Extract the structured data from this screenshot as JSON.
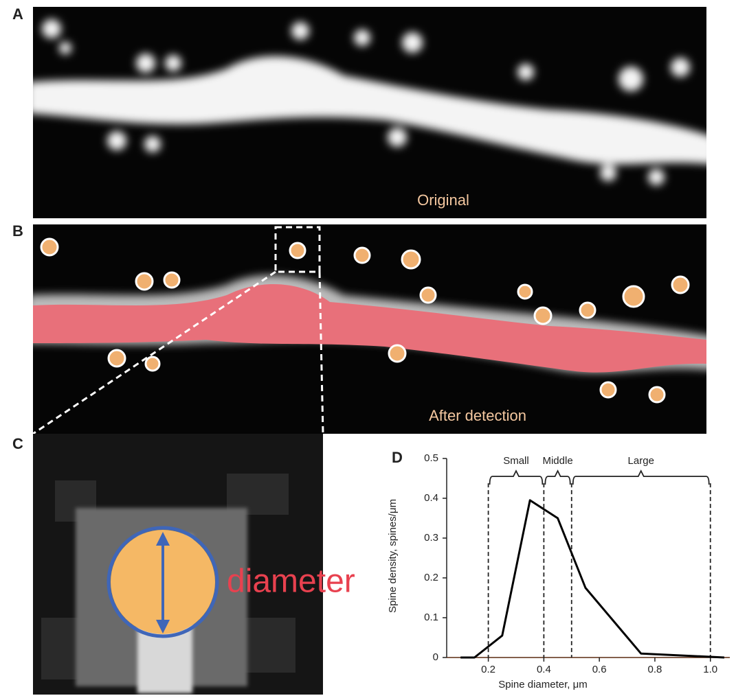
{
  "panels": {
    "a": {
      "label": "A",
      "caption": "Original"
    },
    "b": {
      "label": "B",
      "caption": "After detection"
    },
    "c": {
      "label": "C",
      "annotation": "diameter"
    }
  },
  "chart_data": {
    "type": "line",
    "panel_label": "D",
    "xlabel": "Spine diameter, μm",
    "ylabel": "Spine density, spines/μm",
    "x": [
      0.1,
      0.15,
      0.25,
      0.35,
      0.45,
      0.55,
      0.75,
      1.05
    ],
    "series": [
      {
        "color": "#000000",
        "values": [
          0,
          0,
          0.055,
          0.395,
          0.35,
          0.175,
          0.01,
          0
        ]
      }
    ],
    "xlim": [
      0.05,
      1.07
    ],
    "ylim": [
      0,
      0.5
    ],
    "xticks": [
      0.2,
      0.4,
      0.6,
      0.8,
      {
        "value": 1,
        "label": "1.0"
      }
    ],
    "yticks": [
      0,
      0.1,
      0.2,
      0.3,
      0.4,
      0.5
    ],
    "bracket_level": 0.455,
    "ranges": [
      {
        "label": "Small",
        "from": 0.2,
        "to": 0.4
      },
      {
        "label": "Middle",
        "from": 0.4,
        "to": 0.5
      },
      {
        "label": "Large",
        "from": 0.5,
        "to": 1
      }
    ]
  }
}
